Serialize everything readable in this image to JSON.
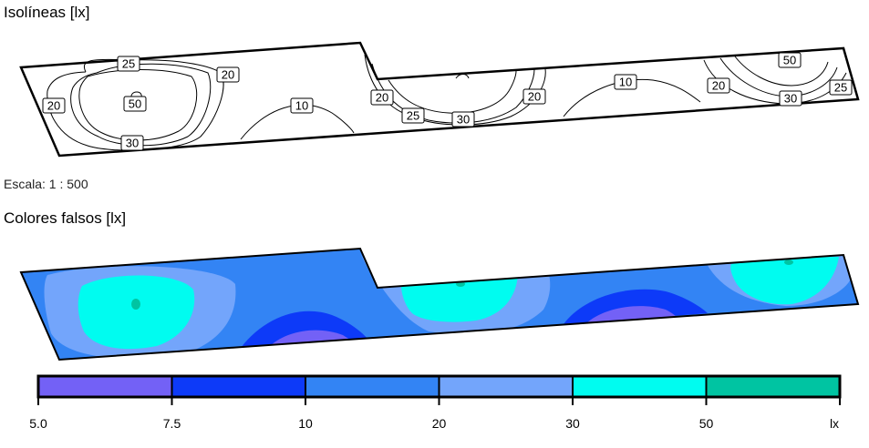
{
  "isolines": {
    "title": "Isolíneas [lx]",
    "labels": [
      "25",
      "20",
      "20",
      "50",
      "30",
      "10",
      "20",
      "25",
      "30",
      "20",
      "10",
      "20",
      "50",
      "30",
      "25"
    ]
  },
  "scale": {
    "text": "Escala: 1 : 500"
  },
  "false_colors": {
    "title": "Colores falsos [lx]"
  },
  "legend": {
    "colors": [
      "#7361f6",
      "#0d3af8",
      "#3384f4",
      "#73a5fb",
      "#00fcf0",
      "#00c4a2"
    ],
    "ticks": [
      "5.0",
      "7.5",
      "10",
      "20",
      "30",
      "50",
      "lx"
    ]
  }
}
